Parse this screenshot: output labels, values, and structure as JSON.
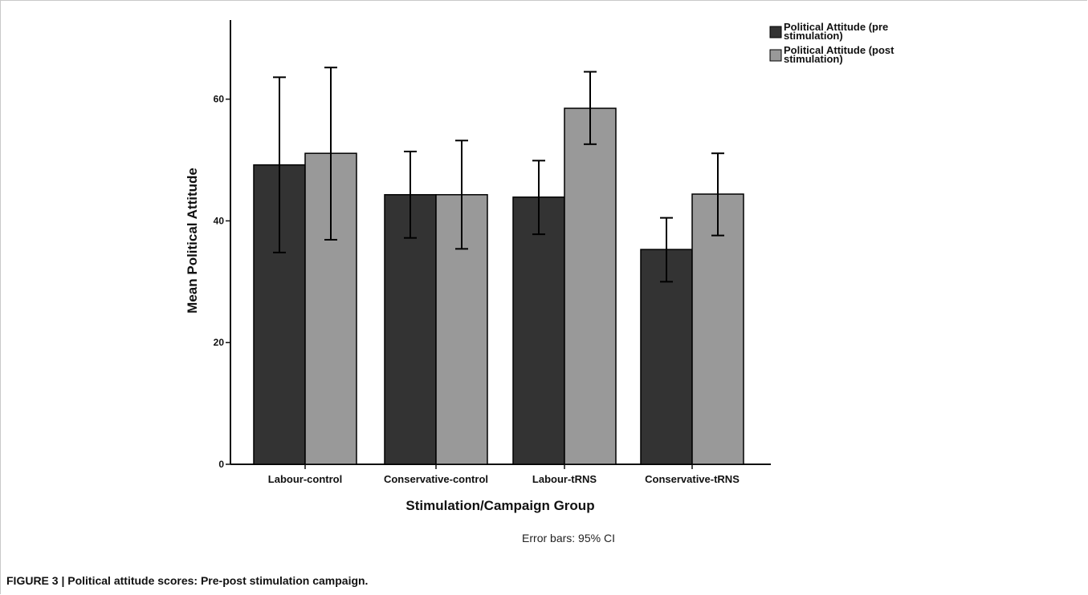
{
  "chart_data": {
    "type": "bar",
    "categories": [
      "Labour-control",
      "Conservative-control",
      "Labour-tRNS",
      "Conservative-tRNS"
    ],
    "series": [
      {
        "name": "Political Attitude (pre stimulation)",
        "legend_lines": [
          "Political Attitude (pre",
          "stimulation)"
        ],
        "color": "#333333",
        "values": [
          49.2,
          44.3,
          43.9,
          35.3
        ],
        "ci_low": [
          34.8,
          37.2,
          37.8,
          30.0
        ],
        "ci_high": [
          63.6,
          51.4,
          49.9,
          40.5
        ]
      },
      {
        "name": "Political Attitude (post stimulation)",
        "legend_lines": [
          "Political Attitude (post",
          "stimulation)"
        ],
        "color": "#999999",
        "values": [
          51.1,
          44.3,
          58.5,
          44.4
        ],
        "ci_low": [
          36.9,
          35.4,
          52.6,
          37.6
        ],
        "ci_high": [
          65.2,
          53.2,
          64.5,
          51.1
        ]
      }
    ],
    "xlabel": "Stimulation/Campaign Group",
    "ylabel": "Mean Political Attitude",
    "ylim": [
      0,
      73
    ],
    "yticks": [
      0,
      20,
      40,
      60
    ],
    "note": "Error bars: 95% CI",
    "legend_position": "top-right",
    "grid": false
  },
  "caption": "FIGURE 3 | Political attitude scores: Pre-post stimulation campaign."
}
